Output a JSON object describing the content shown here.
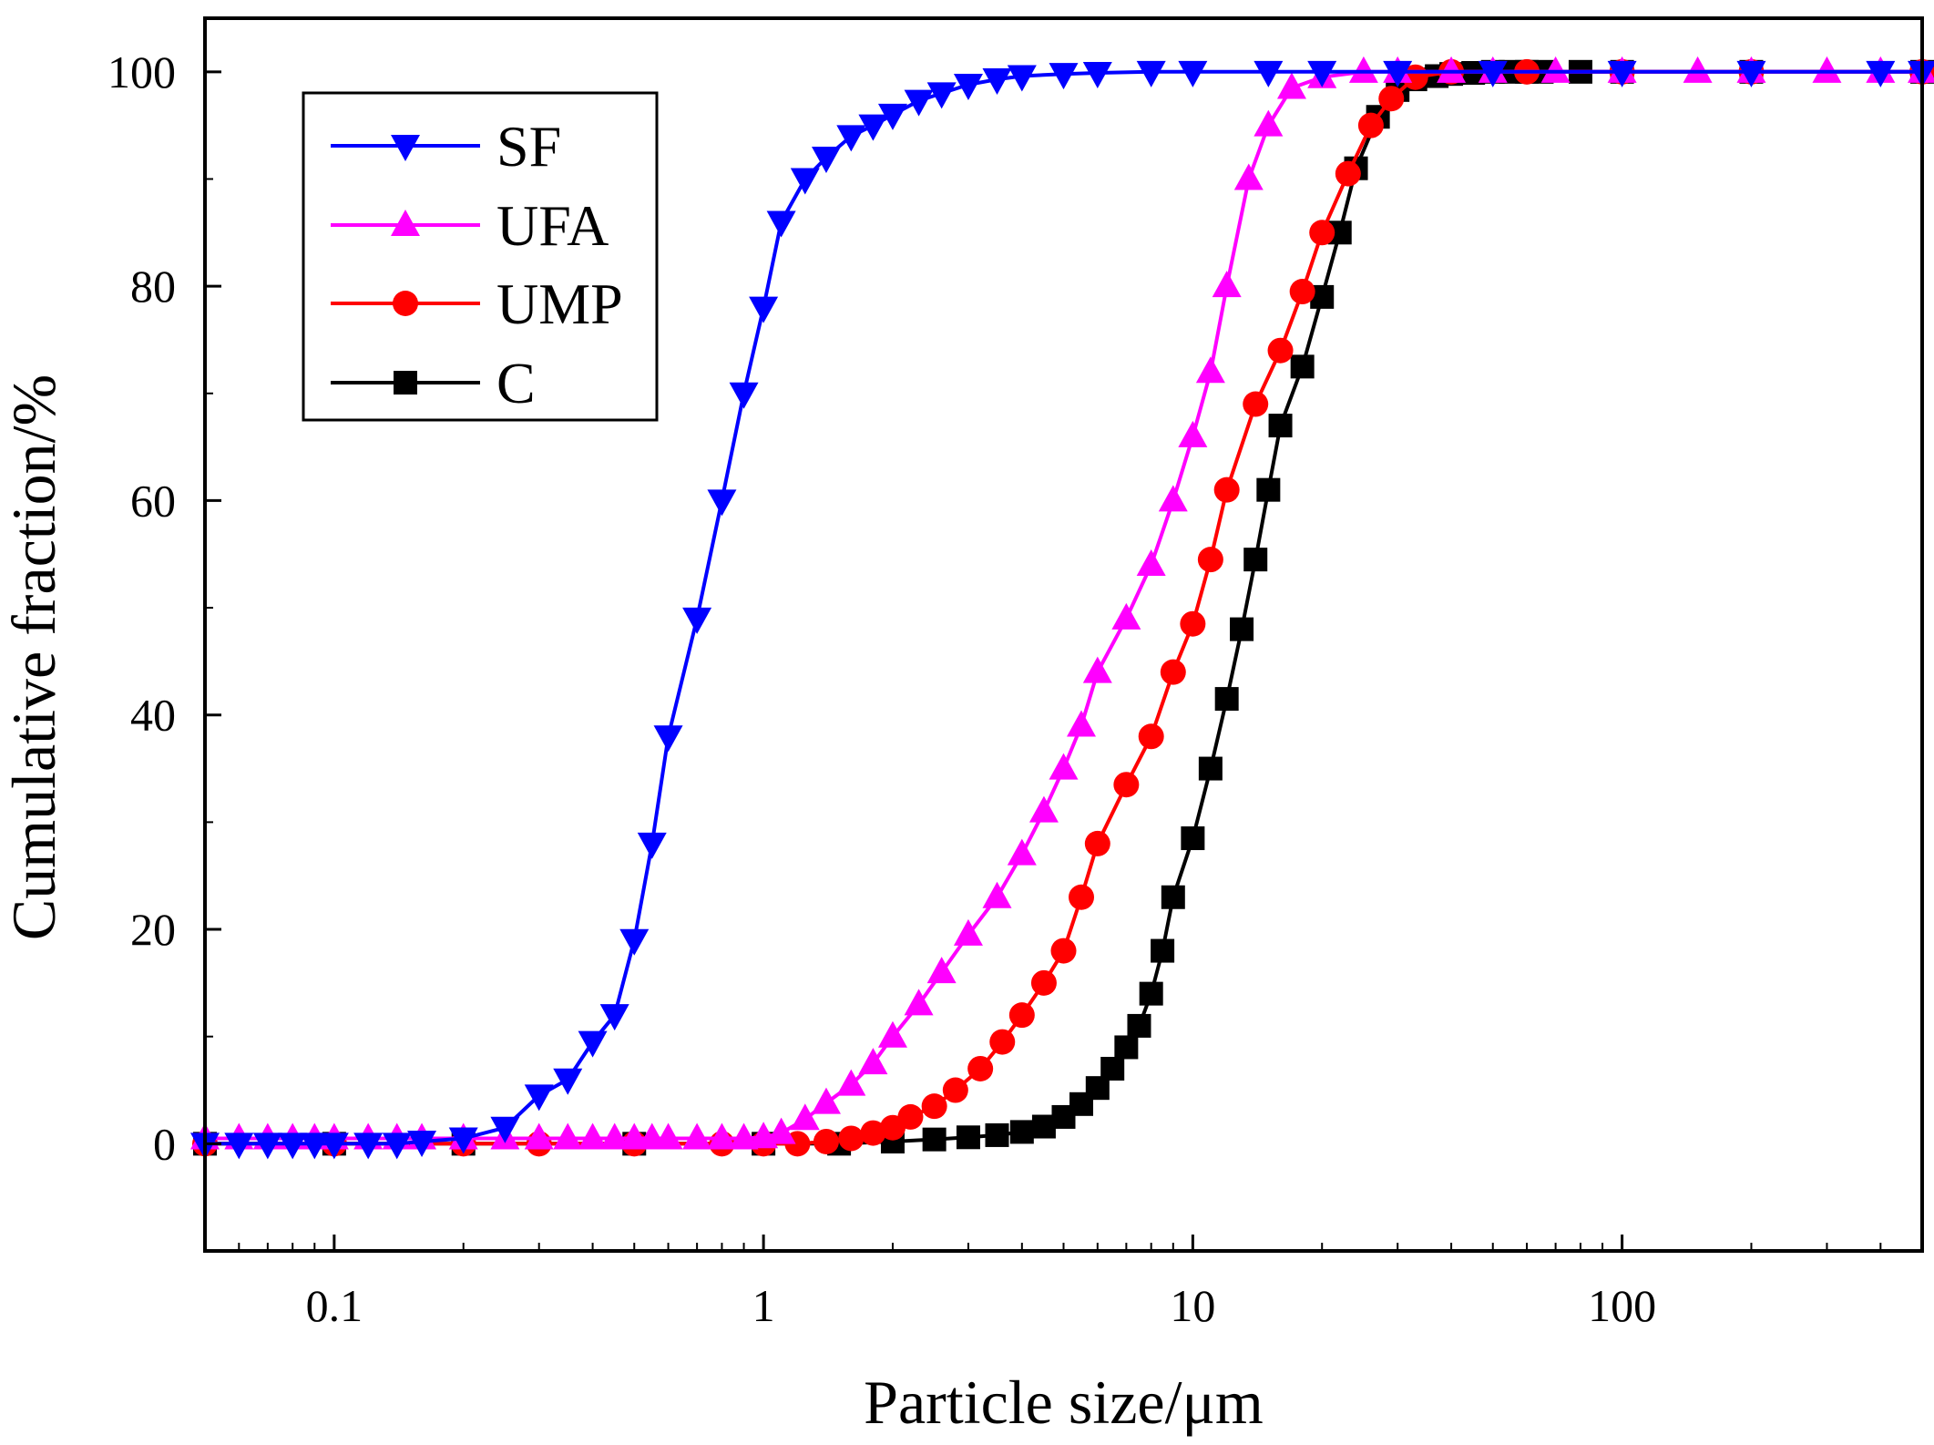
{
  "chart_data": {
    "type": "line",
    "title": "",
    "xlabel": "Particle size/μm",
    "ylabel": "Cumulative fraction/%",
    "xscale": "log",
    "xlim": [
      0.05,
      500
    ],
    "ylim": [
      -10,
      105
    ],
    "grid": false,
    "legend_position": "top-left",
    "x_ticks": [
      {
        "value": 0.1,
        "label": "0.1"
      },
      {
        "value": 1,
        "label": "1"
      },
      {
        "value": 10,
        "label": "10"
      },
      {
        "value": 100,
        "label": "100"
      }
    ],
    "y_ticks": [
      {
        "value": 0,
        "label": "0"
      },
      {
        "value": 20,
        "label": "20"
      },
      {
        "value": 40,
        "label": "40"
      },
      {
        "value": 60,
        "label": "60"
      },
      {
        "value": 80,
        "label": "80"
      },
      {
        "value": 100,
        "label": "100"
      }
    ],
    "series": [
      {
        "name": "SF",
        "color": "#0000ff",
        "marker": "triangle-down",
        "x": [
          0.05,
          0.06,
          0.07,
          0.08,
          0.09,
          0.1,
          0.12,
          0.14,
          0.16,
          0.2,
          0.25,
          0.3,
          0.35,
          0.4,
          0.45,
          0.5,
          0.55,
          0.6,
          0.7,
          0.8,
          0.9,
          1.0,
          1.1,
          1.25,
          1.4,
          1.6,
          1.8,
          2.0,
          2.3,
          2.6,
          3.0,
          3.5,
          4,
          5,
          6,
          8,
          10,
          15,
          20,
          30,
          50,
          100,
          200,
          400,
          500
        ],
        "y": [
          0,
          0,
          0,
          0,
          0,
          0,
          0,
          0,
          0.2,
          0.5,
          1.5,
          4.5,
          6,
          9.5,
          12,
          19,
          28,
          38,
          49,
          60,
          70,
          78,
          86,
          90,
          92,
          94,
          95,
          96,
          97.3,
          98,
          98.8,
          99.3,
          99.6,
          99.8,
          99.9,
          100,
          100,
          100,
          100,
          100,
          100,
          100,
          100,
          100,
          100
        ]
      },
      {
        "name": "UFA",
        "color": "#ff00ff",
        "marker": "triangle-up",
        "x": [
          0.05,
          0.06,
          0.07,
          0.08,
          0.09,
          0.1,
          0.12,
          0.14,
          0.16,
          0.2,
          0.25,
          0.3,
          0.35,
          0.4,
          0.45,
          0.5,
          0.55,
          0.6,
          0.7,
          0.8,
          0.9,
          1.0,
          1.1,
          1.25,
          1.4,
          1.6,
          1.8,
          2.0,
          2.3,
          2.6,
          3.0,
          3.5,
          4,
          4.5,
          5,
          5.5,
          6,
          7,
          8,
          9,
          10,
          11,
          12,
          13.5,
          15,
          17,
          20,
          25,
          30,
          40,
          50,
          70,
          100,
          150,
          200,
          300,
          400,
          500
        ],
        "y": [
          0.5,
          0.5,
          0.5,
          0.5,
          0.5,
          0.5,
          0.5,
          0.5,
          0.5,
          0.5,
          0.5,
          0.5,
          0.5,
          0.5,
          0.5,
          0.5,
          0.5,
          0.5,
          0.5,
          0.5,
          0.5,
          0.6,
          1.0,
          2.3,
          3.8,
          5.5,
          7.5,
          10,
          13,
          16,
          19.5,
          23,
          27,
          31,
          35,
          39,
          44,
          49,
          54,
          60,
          66,
          72,
          80,
          90,
          95,
          98.5,
          99.5,
          100,
          100,
          100,
          100,
          100,
          100,
          100,
          100,
          100,
          100,
          100
        ]
      },
      {
        "name": "UMP",
        "color": "#ff0000",
        "marker": "circle",
        "x": [
          0.05,
          0.1,
          0.2,
          0.3,
          0.5,
          0.8,
          1.0,
          1.2,
          1.4,
          1.6,
          1.8,
          2.0,
          2.2,
          2.5,
          2.8,
          3.2,
          3.6,
          4.0,
          4.5,
          5.0,
          5.5,
          6.0,
          7.0,
          8.0,
          9.0,
          10,
          11,
          12,
          14,
          16,
          18,
          20,
          23,
          26,
          29,
          33,
          40,
          60,
          100,
          200,
          500
        ],
        "y": [
          0,
          0,
          0,
          0,
          0,
          0,
          0,
          0,
          0.2,
          0.5,
          1,
          1.5,
          2.5,
          3.5,
          5,
          7,
          9.5,
          12,
          15,
          18,
          23,
          28,
          33.5,
          38,
          44,
          48.5,
          54.5,
          61,
          69,
          74,
          79.5,
          85,
          90.5,
          95,
          97.5,
          99.5,
          100,
          100,
          100,
          100,
          100
        ]
      },
      {
        "name": "C",
        "color": "#000000",
        "marker": "square",
        "x": [
          0.05,
          0.1,
          0.2,
          0.5,
          1,
          1.5,
          2,
          2.5,
          3,
          3.5,
          4,
          4.5,
          5,
          5.5,
          6,
          6.5,
          7,
          7.5,
          8,
          8.5,
          9,
          10,
          11,
          12,
          13,
          14,
          15,
          16,
          18,
          20,
          22,
          24,
          27,
          30,
          33,
          37,
          40,
          45,
          50,
          55,
          60,
          65,
          80,
          100,
          200,
          500
        ],
        "y": [
          0,
          0,
          0,
          0,
          0,
          0,
          0.2,
          0.4,
          0.6,
          0.8,
          1.1,
          1.6,
          2.5,
          3.7,
          5.2,
          7,
          9,
          11,
          14,
          18,
          23,
          28.5,
          35,
          41.5,
          48,
          54.5,
          61,
          67,
          72.5,
          79,
          85,
          91,
          95.8,
          98.3,
          99.3,
          99.6,
          99.8,
          99.9,
          100,
          100,
          100,
          100,
          100,
          100,
          100,
          100
        ]
      }
    ]
  }
}
